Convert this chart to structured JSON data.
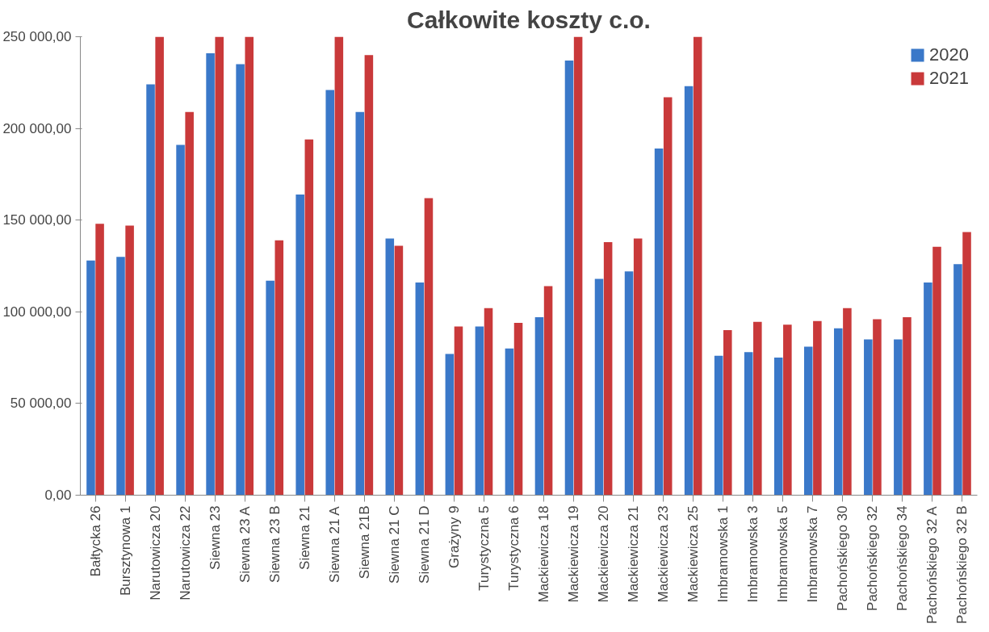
{
  "chart_data": {
    "type": "bar",
    "title": "Całkowite koszty c.o.",
    "categories": [
      "Bałtycka 26",
      "Bursztynowa 1",
      "Narutowicza 20",
      "Narutowicza 22",
      "Siewna 23",
      "Siewna 23 A",
      "Siewna 23 B",
      "Siewna 21",
      "Siewna 21 A",
      "Siewna 21B",
      "Siewna 21 C",
      "Siewna 21 D",
      "Grażyny 9",
      "Turystyczna 5",
      "Turystyczna 6",
      "Mackiewicza 18",
      "Mackiewicza 19",
      "Mackiewicza 20",
      "Mackiewicza 21",
      "Mackiewicza 23",
      "Mackiewicza 25",
      "Imbramowska 1",
      "Imbramowska 3",
      "Imbramowska 5",
      "Imbramowska 7",
      "Pachońskiego 30",
      "Pachońskiego 32",
      "Pachońskiego 34",
      "Pachońskiego 32 A",
      "Pachońskiego 32 B"
    ],
    "series": [
      {
        "name": "2020",
        "color": "#3a78c9",
        "values": [
          128000,
          130000,
          224000,
          191000,
          241000,
          235000,
          117000,
          164000,
          221000,
          209000,
          140000,
          116000,
          77000,
          92000,
          80000,
          97000,
          237000,
          118000,
          122000,
          189000,
          223000,
          76000,
          78000,
          75000,
          81000,
          91000,
          85000,
          85000,
          116000,
          126000
        ]
      },
      {
        "name": "2021",
        "color": "#c9393a",
        "values": [
          148000,
          147000,
          250000,
          209000,
          250000,
          250000,
          139000,
          194000,
          250000,
          240000,
          136000,
          162000,
          92000,
          102000,
          94000,
          114000,
          250000,
          138000,
          140000,
          217000,
          250000,
          90000,
          94500,
          93000,
          95000,
          102000,
          96000,
          97000,
          135500,
          143500
        ]
      }
    ],
    "ylim": [
      0,
      250000
    ],
    "yticks": [
      {
        "value": 0,
        "label": "0,00"
      },
      {
        "value": 50000,
        "label": "50 000,00"
      },
      {
        "value": 100000,
        "label": "100 000,00"
      },
      {
        "value": 150000,
        "label": "150 000,00"
      },
      {
        "value": 200000,
        "label": "200 000,00"
      },
      {
        "value": 250000,
        "label": "250 000,00"
      }
    ],
    "grid": false,
    "legend": "top right"
  }
}
